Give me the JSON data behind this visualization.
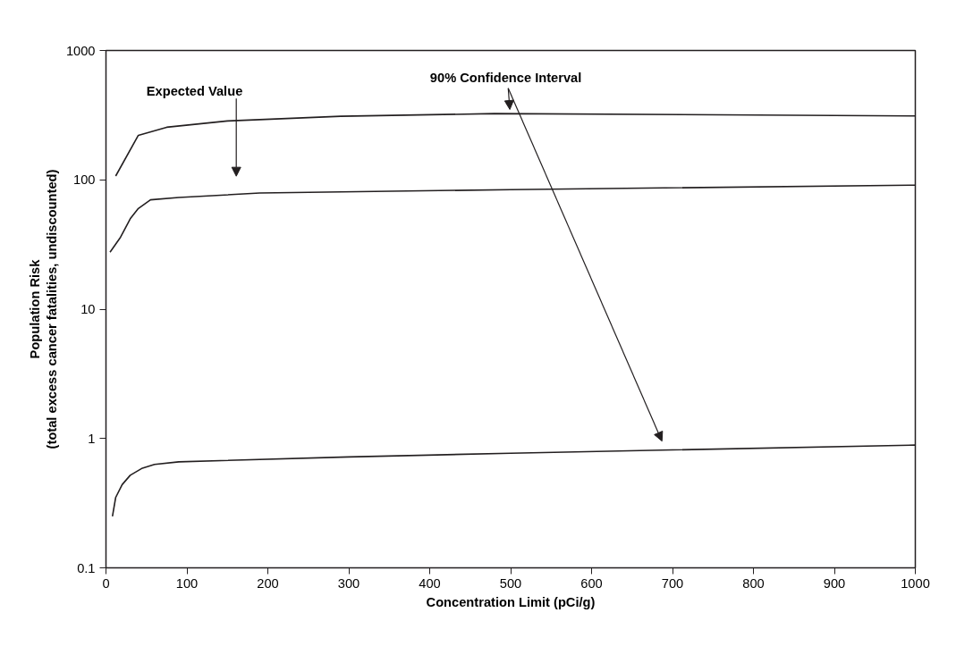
{
  "chart_data": {
    "type": "line",
    "xlabel": "Concentration Limit (pCi/g)",
    "ylabel": "Population Risk\n(total excess cancer fatalities, undiscounted)",
    "log": "y",
    "xlim": [
      0,
      1000
    ],
    "ylim": [
      0.1,
      1000
    ],
    "xticks": [
      0,
      100,
      200,
      300,
      400,
      500,
      600,
      700,
      800,
      900,
      1000
    ],
    "yticks": [
      0.1,
      1,
      10,
      100,
      1000
    ],
    "grid": false,
    "marker": "none",
    "line_style": "solid",
    "series": [
      {
        "color": "#231f20",
        "x": [
          12,
          40,
          75,
          150,
          290,
          480,
          1000
        ],
        "values": [
          107,
          221,
          255,
          285,
          310,
          325,
          312
        ]
      },
      {
        "color": "#231f20",
        "x": [
          5,
          18,
          30,
          40,
          55,
          90,
          190,
          500,
          1000
        ],
        "values": [
          27.6,
          36,
          50,
          60,
          70,
          73,
          79,
          84,
          91
        ]
      },
      {
        "color": "#231f20",
        "x": [
          8,
          12,
          20,
          30,
          45,
          60,
          90,
          300,
          500,
          1000
        ],
        "values": [
          0.25,
          0.35,
          0.44,
          0.52,
          0.59,
          0.63,
          0.66,
          0.72,
          0.77,
          0.89
        ]
      }
    ],
    "annotations": [
      "Expected Value",
      "90% Confidence Interval"
    ]
  }
}
